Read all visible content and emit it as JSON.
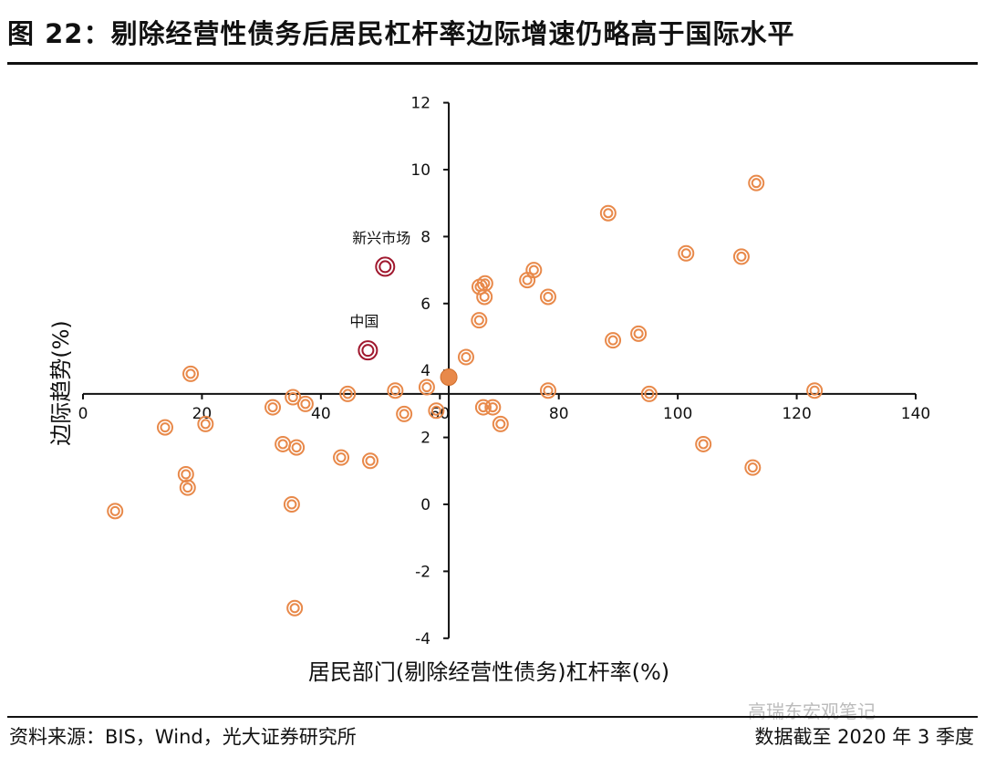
{
  "title": "图 22：剔除经营性债务后居民杠杆率边际增速仍略高于国际水平",
  "source": "资料来源：BIS，Wind，光大证券研究所",
  "note": "数据截至 2020 年 3 季度",
  "watermark": "高瑞东宏观笔记",
  "chart_data": {
    "type": "scatter",
    "xlabel": "居民部门(剔除经营性债务)杠杆率(%)",
    "ylabel": "边际趋势(%)",
    "xlim": [
      0,
      140
    ],
    "ylim": [
      -4,
      12
    ],
    "xticks": [
      0,
      20,
      40,
      60,
      80,
      100,
      120,
      140
    ],
    "yticks": [
      -4,
      -2,
      0,
      2,
      4,
      6,
      8,
      10,
      12
    ],
    "axis_cross": {
      "x": 61.5,
      "y": 3.3
    },
    "grid": false,
    "colors": {
      "points": "#E8894A",
      "highlight": "#A0182E"
    },
    "points": [
      [
        5.4,
        -0.2
      ],
      [
        13.8,
        2.3
      ],
      [
        18.1,
        3.9
      ],
      [
        17.3,
        0.9
      ],
      [
        17.6,
        0.5
      ],
      [
        20.6,
        2.4
      ],
      [
        31.9,
        2.9
      ],
      [
        33.6,
        1.8
      ],
      [
        35.3,
        3.2
      ],
      [
        35.9,
        1.7
      ],
      [
        37.4,
        3.0
      ],
      [
        35.1,
        0.0
      ],
      [
        35.6,
        -3.1
      ],
      [
        43.4,
        1.4
      ],
      [
        44.5,
        3.3
      ],
      [
        48.3,
        1.3
      ],
      [
        52.5,
        3.4
      ],
      [
        54.0,
        2.7
      ],
      [
        57.8,
        3.5
      ],
      [
        59.4,
        2.8
      ],
      [
        64.4,
        4.4
      ],
      [
        66.6,
        5.5
      ],
      [
        66.7,
        6.5
      ],
      [
        67.6,
        6.6
      ],
      [
        67.5,
        6.2
      ],
      [
        67.3,
        2.9
      ],
      [
        68.9,
        2.9
      ],
      [
        70.2,
        2.4
      ],
      [
        74.7,
        6.7
      ],
      [
        75.8,
        7.0
      ],
      [
        78.2,
        6.2
      ],
      [
        78.2,
        3.4
      ],
      [
        88.3,
        8.7
      ],
      [
        89.1,
        4.9
      ],
      [
        93.4,
        5.1
      ],
      [
        95.2,
        3.3
      ],
      [
        101.4,
        7.5
      ],
      [
        104.3,
        1.8
      ],
      [
        110.7,
        7.4
      ],
      [
        113.2,
        9.6
      ],
      [
        112.6,
        1.1
      ],
      [
        123.0,
        3.4
      ]
    ],
    "average_point": [
      61.5,
      3.8
    ],
    "highlighted": [
      {
        "label": "新兴市场",
        "x": 50.8,
        "y": 7.1
      },
      {
        "label": "中国",
        "x": 47.9,
        "y": 4.6
      }
    ]
  }
}
